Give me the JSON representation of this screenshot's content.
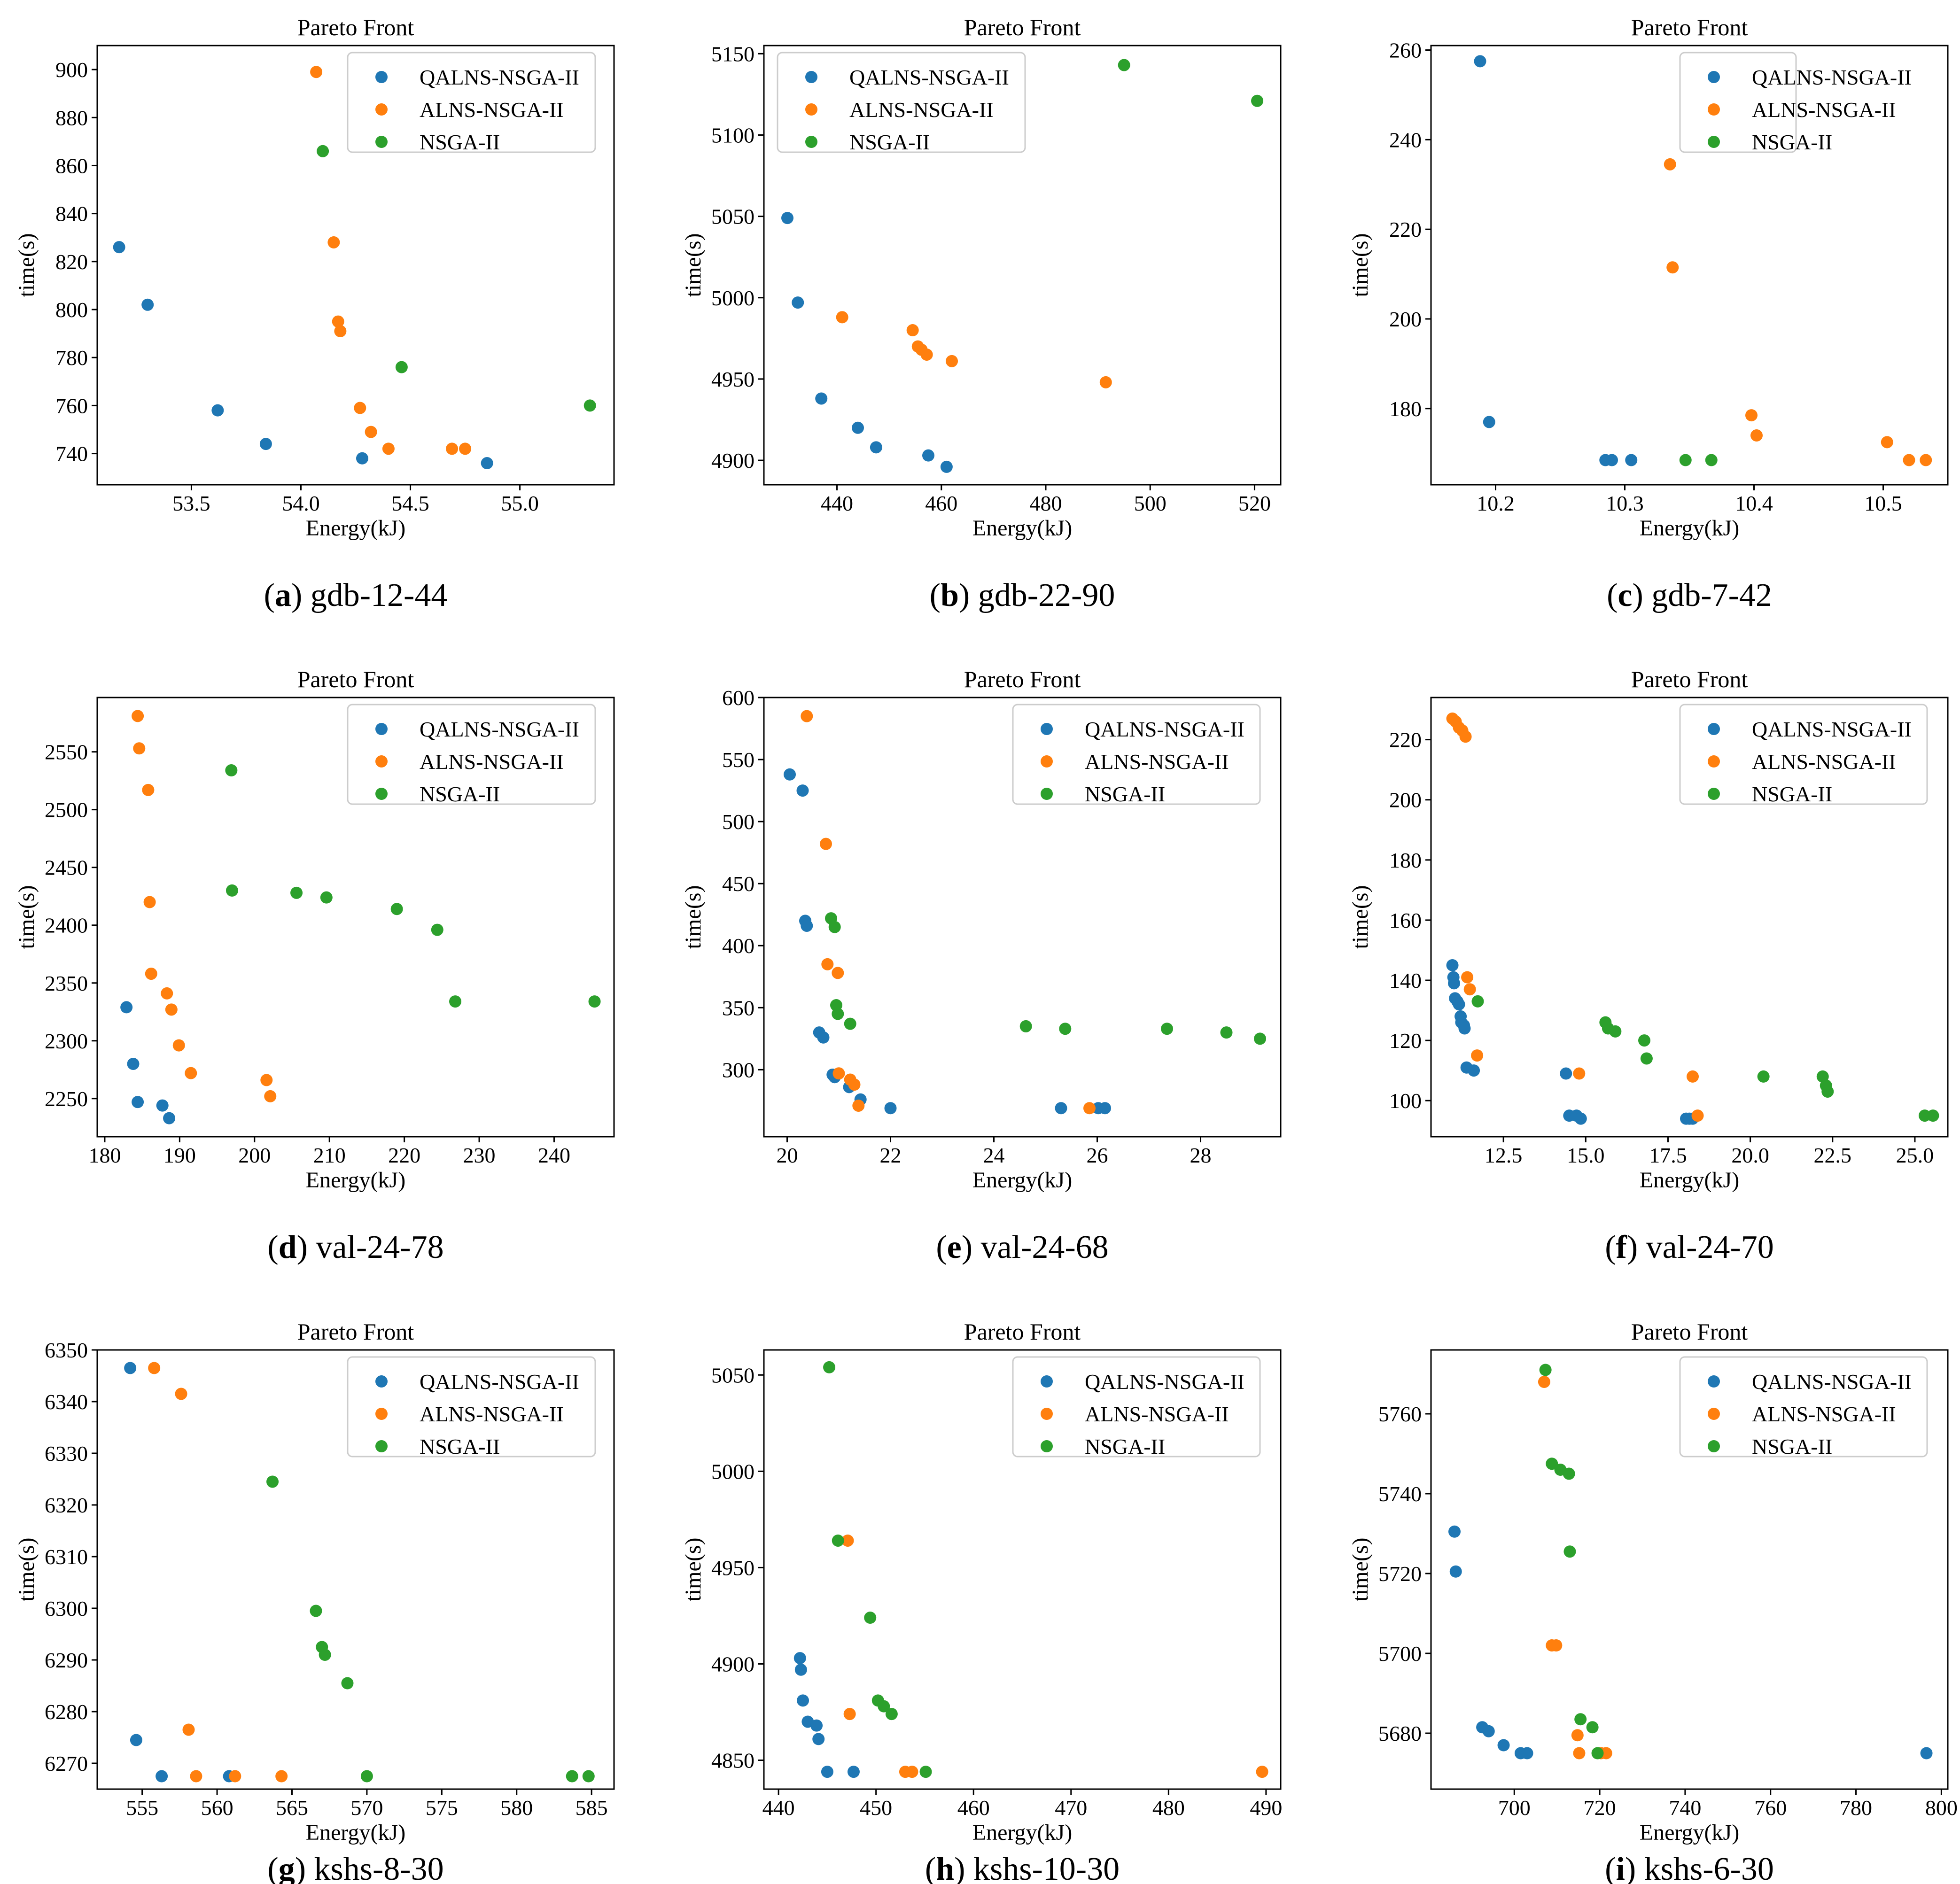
{
  "figure": {
    "panel_title": "Pareto Front",
    "xlabel": "Energy(kJ)",
    "ylabel": "time(s)",
    "legend": [
      "QALNS-NSGA-II",
      "ALNS-NSGA-II",
      "NSGA-II"
    ],
    "colors": [
      "#1f77b4",
      "#ff7f0e",
      "#2ca02c"
    ]
  },
  "chart_data": [
    {
      "type": "scatter",
      "caption_letter": "a",
      "caption_name": "gdb-12-44",
      "title": "Pareto Front",
      "xlabel": "Energy(kJ)",
      "ylabel": "time(s)",
      "xlim": [
        53.07,
        55.43
      ],
      "ylim": [
        727,
        910
      ],
      "xticks": [
        53.5,
        54.0,
        54.5,
        55.0
      ],
      "yticks": [
        740,
        760,
        780,
        800,
        820,
        840,
        860,
        880,
        900
      ],
      "xtick_labels": [
        "53.5",
        "54.0",
        "54.5",
        "55.0"
      ],
      "ytick_labels": [
        "740",
        "760",
        "780",
        "800",
        "820",
        "840",
        "860",
        "880",
        "900"
      ],
      "series": [
        {
          "name": "QALNS-NSGA-II",
          "x": [
            53.17,
            53.3,
            53.62,
            53.84,
            54.28,
            54.85
          ],
          "y": [
            826,
            802,
            758,
            744,
            738,
            736
          ]
        },
        {
          "name": "ALNS-NSGA-II",
          "x": [
            54.07,
            54.15,
            54.17,
            54.18,
            54.27,
            54.32,
            54.4,
            54.69,
            54.75
          ],
          "y": [
            899,
            828,
            795,
            791,
            759,
            749,
            742,
            742,
            742
          ]
        },
        {
          "name": "NSGA-II",
          "x": [
            54.1,
            54.46,
            55.32
          ],
          "y": [
            866,
            776,
            760
          ]
        }
      ]
    },
    {
      "type": "scatter",
      "caption_letter": "b",
      "caption_name": "gdb-22-90",
      "title": "Pareto Front",
      "xlabel": "Energy(kJ)",
      "ylabel": "time(s)",
      "xlim": [
        426,
        525
      ],
      "ylim": [
        4885,
        5155
      ],
      "xticks": [
        440,
        460,
        480,
        500,
        520
      ],
      "yticks": [
        4900,
        4950,
        5000,
        5050,
        5100,
        5150
      ],
      "xtick_labels": [
        "440",
        "460",
        "480",
        "500",
        "520"
      ],
      "ytick_labels": [
        "4900",
        "4950",
        "5000",
        "5050",
        "5100",
        "5150"
      ],
      "series": [
        {
          "name": "QALNS-NSGA-II",
          "x": [
            430.5,
            432.5,
            437.0,
            444.0,
            447.5,
            457.5,
            461.0
          ],
          "y": [
            5049,
            4997,
            4938,
            4920,
            4908,
            4903,
            4896
          ]
        },
        {
          "name": "ALNS-NSGA-II",
          "x": [
            441.0,
            454.5,
            455.5,
            456.2,
            457.2,
            462.0,
            491.5
          ],
          "y": [
            4988,
            4980,
            4970,
            4968,
            4965,
            4961,
            4948
          ]
        },
        {
          "name": "NSGA-II",
          "x": [
            495.0,
            520.5
          ],
          "y": [
            5143,
            5121
          ]
        }
      ]
    },
    {
      "type": "scatter",
      "caption_letter": "c",
      "caption_name": "gdb-7-42",
      "title": "Pareto Front",
      "xlabel": "Energy(kJ)",
      "ylabel": "time(s)",
      "xlim": [
        10.15,
        10.55
      ],
      "ylim": [
        163,
        261
      ],
      "xticks": [
        10.2,
        10.3,
        10.4,
        10.5
      ],
      "yticks": [
        180,
        200,
        220,
        240,
        260
      ],
      "xtick_labels": [
        "10.2",
        "10.3",
        "10.4",
        "10.5"
      ],
      "ytick_labels": [
        "180",
        "200",
        "220",
        "240",
        "260"
      ],
      "series": [
        {
          "name": "QALNS-NSGA-II",
          "x": [
            10.188,
            10.195,
            10.285,
            10.29,
            10.305
          ],
          "y": [
            257.5,
            177,
            168.5,
            168.5,
            168.5
          ]
        },
        {
          "name": "ALNS-NSGA-II",
          "x": [
            10.335,
            10.337,
            10.398,
            10.402,
            10.503,
            10.52,
            10.533
          ],
          "y": [
            234.5,
            211.5,
            178.5,
            174,
            172.5,
            168.5,
            168.5
          ]
        },
        {
          "name": "NSGA-II",
          "x": [
            10.347,
            10.367
          ],
          "y": [
            168.5,
            168.5
          ]
        }
      ]
    },
    {
      "type": "scatter",
      "caption_letter": "d",
      "caption_name": "val-24-78",
      "title": "Pareto Front",
      "xlabel": "Energy(kJ)",
      "ylabel": "time(s)",
      "xlim": [
        179,
        248
      ],
      "ylim": [
        2217,
        2597
      ],
      "xticks": [
        180,
        190,
        200,
        210,
        220,
        230,
        240
      ],
      "yticks": [
        2250,
        2300,
        2350,
        2400,
        2450,
        2500,
        2550
      ],
      "xtick_labels": [
        "180",
        "190",
        "200",
        "210",
        "220",
        "230",
        "240"
      ],
      "ytick_labels": [
        "2250",
        "2300",
        "2350",
        "2400",
        "2450",
        "2500",
        "2550"
      ],
      "series": [
        {
          "name": "QALNS-NSGA-II",
          "x": [
            182.9,
            183.8,
            184.4,
            187.7,
            188.6
          ],
          "y": [
            2329,
            2280,
            2247,
            2244,
            2233
          ]
        },
        {
          "name": "ALNS-NSGA-II",
          "x": [
            184.4,
            184.6,
            185.8,
            186.0,
            186.2,
            188.3,
            188.9,
            189.9,
            191.5,
            201.6,
            202.1
          ],
          "y": [
            2581,
            2553,
            2517,
            2420,
            2358,
            2341,
            2327,
            2296,
            2272,
            2266,
            2252
          ]
        },
        {
          "name": "NSGA-II",
          "x": [
            196.9,
            197.0,
            205.6,
            209.6,
            219.0,
            224.4,
            226.8,
            245.4
          ],
          "y": [
            2534,
            2430,
            2428,
            2424,
            2414,
            2396,
            2334,
            2334
          ]
        }
      ]
    },
    {
      "type": "scatter",
      "caption_letter": "e",
      "caption_name": "val-24-68",
      "title": "Pareto Front",
      "xlabel": "Energy(kJ)",
      "ylabel": "time(s)",
      "xlim": [
        19.55,
        29.55
      ],
      "ylim": [
        246,
        600
      ],
      "xticks": [
        20,
        22,
        24,
        26,
        28
      ],
      "yticks": [
        300,
        350,
        400,
        450,
        500,
        550,
        600
      ],
      "xtick_labels": [
        "20",
        "22",
        "24",
        "26",
        "28"
      ],
      "ytick_labels": [
        "300",
        "350",
        "400",
        "450",
        "500",
        "550",
        "600"
      ],
      "series": [
        {
          "name": "QALNS-NSGA-II",
          "x": [
            20.05,
            20.3,
            20.35,
            20.38,
            20.62,
            20.7,
            20.88,
            20.92,
            21.2,
            21.42,
            22.0,
            25.3,
            26.02,
            26.15
          ],
          "y": [
            538,
            525,
            420,
            416,
            330,
            326,
            296,
            294,
            286,
            276,
            269,
            269,
            269,
            269
          ]
        },
        {
          "name": "ALNS-NSGA-II",
          "x": [
            20.38,
            20.75,
            20.78,
            20.98,
            21.0,
            21.22,
            21.3,
            21.38,
            25.85
          ],
          "y": [
            585,
            482,
            385,
            378,
            297,
            292,
            288,
            271,
            269
          ]
        },
        {
          "name": "NSGA-II",
          "x": [
            20.85,
            20.92,
            20.95,
            20.98,
            21.22,
            24.62,
            25.38,
            27.35,
            28.5,
            29.15
          ],
          "y": [
            422,
            415,
            352,
            345,
            337,
            335,
            333,
            333,
            330,
            325
          ]
        }
      ]
    },
    {
      "type": "scatter",
      "caption_letter": "f",
      "caption_name": "val-24-70",
      "title": "Pareto Front",
      "xlabel": "Energy(kJ)",
      "ylabel": "time(s)",
      "xlim": [
        10.3,
        26.0
      ],
      "ylim": [
        88,
        234
      ],
      "xticks": [
        12.5,
        15.0,
        17.5,
        20.0,
        22.5,
        25.0
      ],
      "yticks": [
        100,
        120,
        140,
        160,
        180,
        200,
        220
      ],
      "xtick_labels": [
        "12.5",
        "15.0",
        "17.5",
        "20.0",
        "22.5",
        "25.0"
      ],
      "ytick_labels": [
        "100",
        "120",
        "140",
        "160",
        "180",
        "200",
        "220"
      ],
      "series": [
        {
          "name": "QALNS-NSGA-II",
          "x": [
            10.95,
            10.98,
            11.0,
            11.03,
            11.1,
            11.15,
            11.2,
            11.22,
            11.3,
            11.32,
            11.38,
            11.6,
            14.4,
            14.5,
            14.72,
            14.85,
            18.05,
            18.15,
            18.25
          ],
          "y": [
            145,
            141,
            139,
            134,
            133,
            132,
            128,
            126,
            125,
            124,
            111,
            110,
            109,
            95,
            95,
            94,
            94,
            94,
            94
          ]
        },
        {
          "name": "ALNS-NSGA-II",
          "x": [
            10.95,
            11.05,
            11.15,
            11.25,
            11.35,
            11.4,
            11.48,
            11.7,
            14.8,
            18.25,
            18.4
          ],
          "y": [
            227,
            226,
            224,
            223,
            221,
            141,
            137,
            115,
            109,
            108,
            95
          ]
        },
        {
          "name": "NSGA-II",
          "x": [
            11.72,
            15.6,
            15.68,
            15.9,
            16.78,
            16.85,
            20.4,
            22.2,
            22.3,
            22.35,
            25.3,
            25.55
          ],
          "y": [
            133,
            126,
            124,
            123,
            120,
            114,
            108,
            108,
            105,
            103,
            95,
            95
          ]
        }
      ]
    },
    {
      "type": "scatter",
      "caption_letter": "g",
      "caption_name": "kshs-8-30",
      "title": "Pareto Front",
      "xlabel": "Energy(kJ)",
      "ylabel": "time(s)",
      "xlim": [
        552,
        586.5
      ],
      "ylim": [
        6265,
        6350
      ],
      "xticks": [
        555,
        560,
        565,
        570,
        575,
        580,
        585
      ],
      "yticks": [
        6270,
        6280,
        6290,
        6300,
        6310,
        6320,
        6330,
        6340,
        6350
      ],
      "xtick_labels": [
        "555",
        "560",
        "565",
        "570",
        "575",
        "580",
        "585"
      ],
      "ytick_labels": [
        "6270",
        "6280",
        "6290",
        "6300",
        "6310",
        "6320",
        "6330",
        "6340",
        "6350"
      ],
      "series": [
        {
          "name": "QALNS-NSGA-II",
          "x": [
            554.2,
            554.6,
            556.3,
            560.8
          ],
          "y": [
            6346.5,
            6274.5,
            6267.5,
            6267.5
          ]
        },
        {
          "name": "ALNS-NSGA-II",
          "x": [
            555.8,
            557.6,
            558.1,
            558.6,
            561.2,
            564.3
          ],
          "y": [
            6346.5,
            6341.5,
            6276.5,
            6267.5,
            6267.5,
            6267.5
          ]
        },
        {
          "name": "NSGA-II",
          "x": [
            563.7,
            566.6,
            567.0,
            567.2,
            568.7,
            570.0,
            583.7,
            584.8
          ],
          "y": [
            6324.5,
            6299.5,
            6292.5,
            6291.0,
            6285.5,
            6267.5,
            6267.5,
            6267.5
          ]
        }
      ]
    },
    {
      "type": "scatter",
      "caption_letter": "h",
      "caption_name": "kshs-10-30",
      "title": "Pareto Front",
      "xlabel": "Energy(kJ)",
      "ylabel": "time(s)",
      "xlim": [
        438.5,
        491.5
      ],
      "ylim": [
        4835,
        5063
      ],
      "xticks": [
        440,
        450,
        460,
        470,
        480,
        490
      ],
      "yticks": [
        4850,
        4900,
        4950,
        5000,
        5050
      ],
      "xtick_labels": [
        "440",
        "450",
        "460",
        "470",
        "480",
        "490"
      ],
      "ytick_labels": [
        "4850",
        "4900",
        "4950",
        "5000",
        "5050"
      ],
      "series": [
        {
          "name": "QALNS-NSGA-II",
          "x": [
            442.2,
            442.3,
            442.5,
            443.0,
            443.9,
            444.1,
            445.0,
            447.7
          ],
          "y": [
            4903,
            4897,
            4881,
            4870,
            4868,
            4861,
            4844,
            4844
          ]
        },
        {
          "name": "ALNS-NSGA-II",
          "x": [
            447.1,
            447.3,
            453.0,
            453.7,
            489.6
          ],
          "y": [
            4964,
            4874,
            4844,
            4844,
            4844
          ]
        },
        {
          "name": "NSGA-II",
          "x": [
            445.2,
            446.1,
            449.4,
            450.2,
            450.8,
            451.6,
            455.1
          ],
          "y": [
            5054,
            4964,
            4924,
            4881,
            4878,
            4874,
            4844
          ]
        }
      ]
    },
    {
      "type": "scatter",
      "caption_letter": "i",
      "caption_name": "kshs-6-30",
      "title": "Pareto Front",
      "xlabel": "Energy(kJ)",
      "ylabel": "time(s)",
      "xlim": [
        680.5,
        801.5
      ],
      "ylim": [
        5666,
        5776
      ],
      "xticks": [
        700,
        720,
        740,
        760,
        780,
        800
      ],
      "yticks": [
        5680,
        5700,
        5720,
        5740,
        5760
      ],
      "xtick_labels": [
        "700",
        "720",
        "740",
        "760",
        "780",
        "800"
      ],
      "ytick_labels": [
        "5680",
        "5700",
        "5720",
        "5740",
        "5760"
      ],
      "series": [
        {
          "name": "QALNS-NSGA-II",
          "x": [
            686.0,
            686.3,
            692.5,
            694.0,
            697.5,
            701.5,
            703.0,
            796.5
          ],
          "y": [
            5730.5,
            5720.5,
            5681.5,
            5680.5,
            5677,
            5675,
            5675,
            5675
          ]
        },
        {
          "name": "ALNS-NSGA-II",
          "x": [
            707.0,
            708.8,
            709.8,
            714.8,
            715.2,
            720.3,
            721.5
          ],
          "y": [
            5768,
            5702,
            5702,
            5679.5,
            5675,
            5675,
            5675
          ]
        },
        {
          "name": "NSGA-II",
          "x": [
            707.3,
            708.8,
            710.8,
            712.8,
            713.0,
            715.5,
            718.3,
            719.5
          ],
          "y": [
            5771,
            5747.5,
            5746,
            5745,
            5725.5,
            5683.5,
            5681.5,
            5675
          ]
        }
      ]
    }
  ]
}
